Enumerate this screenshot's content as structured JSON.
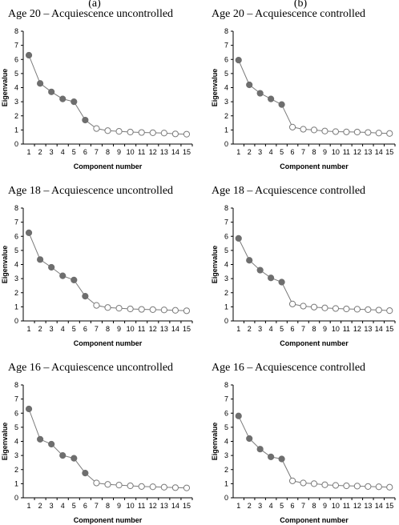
{
  "columns": [
    {
      "label": "(a)"
    },
    {
      "label": "(b)"
    }
  ],
  "colors": {
    "filled": "#6e6e6e",
    "line": "#7a7a7a",
    "open_fill": "#ffffff",
    "axis": "#000000"
  },
  "chart_data": [
    {
      "type": "line",
      "title": "Age 20 – Acquiescence uncontrolled",
      "xlabel": "Component number",
      "ylabel": "Eigenvalue",
      "ylim": [
        0,
        8
      ],
      "yticks": [
        0,
        1,
        2,
        3,
        4,
        5,
        6,
        7,
        8
      ],
      "x": [
        1,
        2,
        3,
        4,
        5,
        6,
        7,
        8,
        9,
        10,
        11,
        12,
        13,
        14,
        15
      ],
      "values": [
        6.3,
        4.3,
        3.7,
        3.2,
        3.0,
        1.7,
        1.1,
        0.95,
        0.9,
        0.85,
        0.82,
        0.8,
        0.78,
        0.72,
        0.7
      ],
      "filled_count": 6
    },
    {
      "type": "line",
      "title": "Age 20 – Acquiescence controlled",
      "xlabel": "Component number",
      "ylabel": "Eigenvalue",
      "ylim": [
        0,
        8
      ],
      "yticks": [
        0,
        1,
        2,
        3,
        4,
        5,
        6,
        7,
        8
      ],
      "x": [
        1,
        2,
        3,
        4,
        5,
        6,
        7,
        8,
        9,
        10,
        11,
        12,
        13,
        14,
        15
      ],
      "values": [
        5.95,
        4.2,
        3.6,
        3.2,
        2.8,
        1.2,
        1.05,
        1.0,
        0.92,
        0.88,
        0.86,
        0.85,
        0.82,
        0.78,
        0.75
      ],
      "filled_count": 5
    },
    {
      "type": "line",
      "title": "Age 18 – Acquiescence uncontrolled",
      "xlabel": "Component number",
      "ylabel": "Eigenvalue",
      "ylim": [
        0,
        8
      ],
      "yticks": [
        0,
        1,
        2,
        3,
        4,
        5,
        6,
        7,
        8
      ],
      "x": [
        1,
        2,
        3,
        4,
        5,
        6,
        7,
        8,
        9,
        10,
        11,
        12,
        13,
        14,
        15
      ],
      "values": [
        6.25,
        4.35,
        3.8,
        3.2,
        2.9,
        1.75,
        1.1,
        0.95,
        0.9,
        0.85,
        0.82,
        0.8,
        0.78,
        0.75,
        0.72
      ],
      "filled_count": 6
    },
    {
      "type": "line",
      "title": "Age 18 – Acquiescence controlled",
      "xlabel": "Component number",
      "ylabel": "Eigenvalue",
      "ylim": [
        0,
        8
      ],
      "yticks": [
        0,
        1,
        2,
        3,
        4,
        5,
        6,
        7,
        8
      ],
      "x": [
        1,
        2,
        3,
        4,
        5,
        6,
        7,
        8,
        9,
        10,
        11,
        12,
        13,
        14,
        15
      ],
      "values": [
        5.85,
        4.3,
        3.6,
        3.05,
        2.75,
        1.2,
        1.05,
        0.98,
        0.92,
        0.88,
        0.85,
        0.83,
        0.8,
        0.77,
        0.73
      ],
      "filled_count": 5
    },
    {
      "type": "line",
      "title": "Age 16 – Acquiescence uncontrolled",
      "xlabel": "Component number",
      "ylabel": "Eigenvalue",
      "ylim": [
        0,
        8
      ],
      "yticks": [
        0,
        1,
        2,
        3,
        4,
        5,
        6,
        7,
        8
      ],
      "x": [
        1,
        2,
        3,
        4,
        5,
        6,
        7,
        8,
        9,
        10,
        11,
        12,
        13,
        14,
        15
      ],
      "values": [
        6.3,
        4.15,
        3.8,
        3.0,
        2.8,
        1.75,
        1.05,
        0.95,
        0.9,
        0.85,
        0.8,
        0.78,
        0.75,
        0.72,
        0.7
      ],
      "filled_count": 6
    },
    {
      "type": "line",
      "title": "Age 16 – Acquiescence controlled",
      "xlabel": "Component number",
      "ylabel": "Eigenvalue",
      "ylim": [
        0,
        8
      ],
      "yticks": [
        0,
        1,
        2,
        3,
        4,
        5,
        6,
        7,
        8
      ],
      "x": [
        1,
        2,
        3,
        4,
        5,
        6,
        7,
        8,
        9,
        10,
        11,
        12,
        13,
        14,
        15
      ],
      "values": [
        5.8,
        4.2,
        3.45,
        2.9,
        2.75,
        1.2,
        1.05,
        1.0,
        0.92,
        0.88,
        0.85,
        0.83,
        0.8,
        0.78,
        0.75
      ],
      "filled_count": 5
    }
  ]
}
